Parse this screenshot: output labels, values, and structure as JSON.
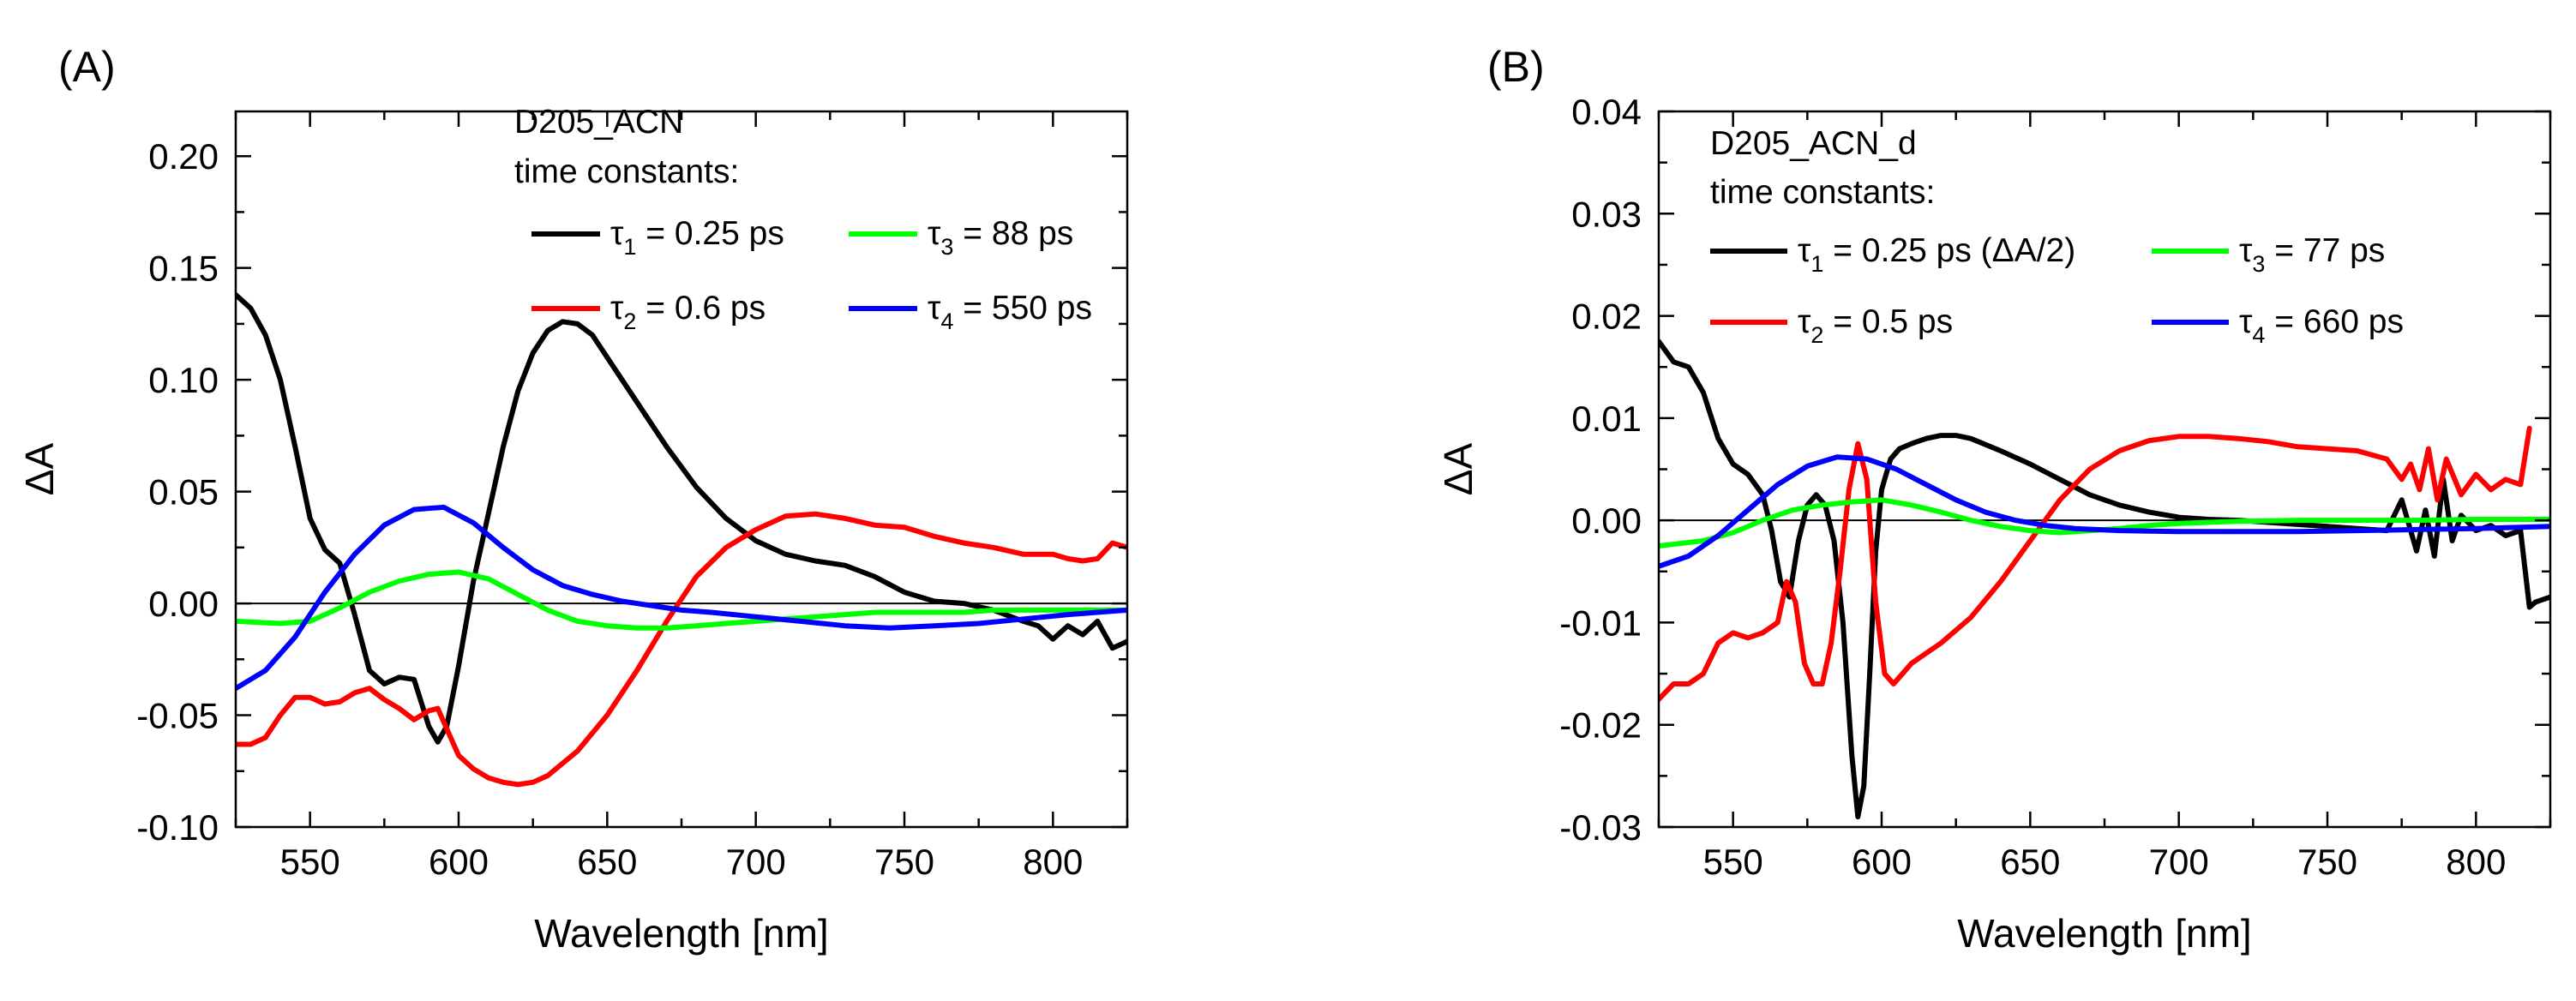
{
  "chart_data": [
    {
      "type": "line",
      "panel_label": "(A)",
      "xlabel": "Wavelength [nm]",
      "ylabel": "ΔA",
      "xlim": [
        525,
        825
      ],
      "ylim": [
        -0.1,
        0.22
      ],
      "xticks": [
        550,
        600,
        650,
        700,
        750,
        800
      ],
      "xtick_labels": [
        "550",
        "600",
        "650",
        "700",
        "750",
        "800"
      ],
      "yticks": [
        -0.1,
        -0.05,
        0.0,
        0.05,
        0.1,
        0.15,
        0.2
      ],
      "ytick_labels": [
        "-0.10",
        "-0.05",
        "0.00",
        "0.05",
        "0.10",
        "0.15",
        "0.20"
      ],
      "legend": {
        "title": "D205_ACN",
        "subtitle": "time constants:",
        "entries": [
          {
            "symbol": "τ",
            "sub": "1",
            "text": " = 0.25 ps"
          },
          {
            "symbol": "τ",
            "sub": "3",
            "text": " = 88 ps"
          },
          {
            "symbol": "τ",
            "sub": "2",
            "text": " = 0.6 ps"
          },
          {
            "symbol": "τ",
            "sub": "4",
            "text": " = 550 ps"
          }
        ]
      },
      "series": [
        {
          "name": "τ1 = 0.25 ps",
          "color": "#000000",
          "x": [
            525,
            530,
            535,
            540,
            545,
            550,
            555,
            560,
            565,
            570,
            575,
            580,
            585,
            590,
            593,
            596,
            600,
            605,
            610,
            615,
            620,
            625,
            630,
            635,
            640,
            645,
            650,
            660,
            670,
            680,
            690,
            700,
            710,
            720,
            730,
            740,
            750,
            760,
            770,
            780,
            790,
            795,
            800,
            805,
            810,
            815,
            820,
            825
          ],
          "y": [
            0.138,
            0.132,
            0.12,
            0.1,
            0.07,
            0.038,
            0.024,
            0.018,
            -0.005,
            -0.03,
            -0.036,
            -0.033,
            -0.034,
            -0.055,
            -0.062,
            -0.055,
            -0.028,
            0.01,
            0.04,
            0.07,
            0.095,
            0.112,
            0.122,
            0.126,
            0.125,
            0.12,
            0.11,
            0.09,
            0.07,
            0.052,
            0.038,
            0.028,
            0.022,
            0.019,
            0.017,
            0.012,
            0.005,
            0.001,
            0.0,
            -0.003,
            -0.008,
            -0.01,
            -0.016,
            -0.01,
            -0.014,
            -0.008,
            -0.02,
            -0.017
          ]
        },
        {
          "name": "τ2 = 0.6 ps",
          "color": "#ff0000",
          "x": [
            525,
            530,
            535,
            540,
            545,
            550,
            555,
            560,
            565,
            570,
            575,
            580,
            585,
            590,
            593,
            596,
            600,
            605,
            610,
            615,
            620,
            625,
            630,
            640,
            650,
            660,
            670,
            680,
            690,
            700,
            710,
            720,
            730,
            740,
            750,
            760,
            770,
            780,
            790,
            800,
            805,
            810,
            815,
            820,
            825
          ],
          "y": [
            -0.063,
            -0.063,
            -0.06,
            -0.05,
            -0.042,
            -0.042,
            -0.045,
            -0.044,
            -0.04,
            -0.038,
            -0.043,
            -0.047,
            -0.052,
            -0.048,
            -0.047,
            -0.056,
            -0.068,
            -0.074,
            -0.078,
            -0.08,
            -0.081,
            -0.08,
            -0.077,
            -0.066,
            -0.05,
            -0.03,
            -0.008,
            0.012,
            0.025,
            0.033,
            0.039,
            0.04,
            0.038,
            0.035,
            0.034,
            0.03,
            0.027,
            0.025,
            0.022,
            0.022,
            0.02,
            0.019,
            0.02,
            0.027,
            0.025
          ]
        },
        {
          "name": "τ3 = 88 ps",
          "color": "#00ff00",
          "x": [
            525,
            540,
            550,
            560,
            570,
            580,
            590,
            600,
            610,
            620,
            630,
            640,
            650,
            660,
            670,
            680,
            690,
            700,
            710,
            720,
            730,
            740,
            750,
            760,
            770,
            780,
            790,
            800,
            810,
            825
          ],
          "y": [
            -0.008,
            -0.009,
            -0.008,
            -0.002,
            0.005,
            0.01,
            0.013,
            0.014,
            0.011,
            0.004,
            -0.003,
            -0.008,
            -0.01,
            -0.011,
            -0.011,
            -0.01,
            -0.009,
            -0.008,
            -0.007,
            -0.006,
            -0.005,
            -0.004,
            -0.004,
            -0.004,
            -0.004,
            -0.003,
            -0.003,
            -0.003,
            -0.003,
            -0.003
          ]
        },
        {
          "name": "τ4 = 550 ps",
          "color": "#0000ff",
          "x": [
            525,
            535,
            545,
            555,
            565,
            575,
            585,
            595,
            605,
            615,
            625,
            635,
            645,
            655,
            665,
            675,
            685,
            700,
            715,
            730,
            745,
            760,
            775,
            790,
            805,
            825
          ],
          "y": [
            -0.038,
            -0.03,
            -0.015,
            0.005,
            0.022,
            0.035,
            0.042,
            0.043,
            0.036,
            0.025,
            0.015,
            0.008,
            0.004,
            0.001,
            -0.001,
            -0.003,
            -0.004,
            -0.006,
            -0.008,
            -0.01,
            -0.011,
            -0.01,
            -0.009,
            -0.007,
            -0.005,
            -0.003
          ]
        }
      ]
    },
    {
      "type": "line",
      "panel_label": "(B)",
      "xlabel": "Wavelength [nm]",
      "ylabel": "ΔA",
      "xlim": [
        525,
        825
      ],
      "ylim": [
        -0.03,
        0.04
      ],
      "xticks": [
        550,
        600,
        650,
        700,
        750,
        800
      ],
      "xtick_labels": [
        "550",
        "600",
        "650",
        "700",
        "750",
        "800"
      ],
      "yticks": [
        -0.03,
        -0.02,
        -0.01,
        0.0,
        0.01,
        0.02,
        0.03,
        0.04
      ],
      "ytick_labels": [
        "-0.03",
        "-0.02",
        "-0.01",
        "0.00",
        "0.01",
        "0.02",
        "0.03",
        "0.04"
      ],
      "legend": {
        "title": "D205_ACN_d",
        "subtitle": "time constants:",
        "entries": [
          {
            "symbol": "τ",
            "sub": "1",
            "text": " = 0.25 ps (ΔA/2)"
          },
          {
            "symbol": "τ",
            "sub": "3",
            "text": " = 77 ps"
          },
          {
            "symbol": "τ",
            "sub": "2",
            "text": " = 0.5 ps"
          },
          {
            "symbol": "τ",
            "sub": "4",
            "text": " = 660 ps"
          }
        ]
      },
      "series": [
        {
          "name": "τ1 = 0.25 ps (ΔA/2)",
          "color": "#000000",
          "x": [
            525,
            530,
            535,
            540,
            545,
            550,
            555,
            560,
            563,
            566,
            569,
            572,
            575,
            578,
            581,
            584,
            587,
            590,
            592,
            594,
            596,
            598,
            600,
            603,
            606,
            610,
            615,
            620,
            625,
            630,
            640,
            650,
            660,
            670,
            680,
            690,
            700,
            710,
            720,
            730,
            740,
            750,
            760,
            770,
            775,
            780,
            783,
            786,
            789,
            792,
            795,
            800,
            805,
            810,
            815,
            818,
            820,
            825
          ],
          "y": [
            0.0175,
            0.0155,
            0.015,
            0.0125,
            0.008,
            0.0055,
            0.0045,
            0.0025,
            -0.001,
            -0.006,
            -0.0075,
            -0.002,
            0.0015,
            0.0025,
            0.0015,
            -0.002,
            -0.01,
            -0.023,
            -0.029,
            -0.026,
            -0.015,
            -0.003,
            0.003,
            0.006,
            0.007,
            0.0075,
            0.008,
            0.0083,
            0.0083,
            0.008,
            0.0068,
            0.0055,
            0.004,
            0.0025,
            0.0015,
            0.0008,
            0.0003,
            0.0001,
            0.0,
            -0.0002,
            -0.0004,
            -0.0006,
            -0.0008,
            -0.001,
            0.002,
            -0.003,
            0.001,
            -0.0035,
            0.004,
            -0.002,
            0.0005,
            -0.001,
            -0.0005,
            -0.0015,
            -0.001,
            -0.0085,
            -0.008,
            -0.0075
          ]
        },
        {
          "name": "τ2 = 0.5 ps",
          "color": "#ff0000",
          "x": [
            525,
            530,
            535,
            540,
            545,
            550,
            555,
            560,
            565,
            568,
            571,
            574,
            577,
            580,
            583,
            586,
            589,
            592,
            595,
            598,
            601,
            604,
            607,
            610,
            615,
            620,
            630,
            640,
            650,
            660,
            670,
            680,
            690,
            700,
            710,
            720,
            730,
            740,
            750,
            760,
            770,
            775,
            778,
            781,
            784,
            787,
            790,
            795,
            800,
            805,
            810,
            815,
            818
          ],
          "y": [
            -0.0175,
            -0.016,
            -0.016,
            -0.015,
            -0.012,
            -0.011,
            -0.0115,
            -0.011,
            -0.01,
            -0.006,
            -0.008,
            -0.014,
            -0.016,
            -0.016,
            -0.012,
            -0.005,
            0.003,
            0.0075,
            0.004,
            -0.008,
            -0.015,
            -0.016,
            -0.015,
            -0.014,
            -0.013,
            -0.012,
            -0.0095,
            -0.006,
            -0.002,
            0.002,
            0.005,
            0.0068,
            0.0078,
            0.0082,
            0.0082,
            0.008,
            0.0077,
            0.0072,
            0.007,
            0.0068,
            0.006,
            0.004,
            0.0055,
            0.003,
            0.007,
            0.002,
            0.006,
            0.0025,
            0.0045,
            0.003,
            0.004,
            0.0035,
            0.009
          ]
        },
        {
          "name": "τ3 = 77 ps",
          "color": "#00ff00",
          "x": [
            525,
            540,
            550,
            560,
            570,
            580,
            590,
            600,
            610,
            620,
            630,
            640,
            650,
            660,
            670,
            680,
            690,
            700,
            720,
            740,
            760,
            780,
            800,
            825
          ],
          "y": [
            -0.0025,
            -0.002,
            -0.0012,
            0.0,
            0.001,
            0.0015,
            0.0018,
            0.002,
            0.0015,
            0.0008,
            0.0,
            -0.0006,
            -0.001,
            -0.0012,
            -0.001,
            -0.0008,
            -0.0005,
            -0.0003,
            -0.0001,
            0.0,
            0.0,
            0.0,
            0.0001,
            0.0001
          ]
        },
        {
          "name": "τ4 = 660 ps",
          "color": "#0000ff",
          "x": [
            525,
            535,
            545,
            555,
            565,
            575,
            585,
            595,
            605,
            615,
            625,
            635,
            645,
            655,
            665,
            680,
            700,
            720,
            740,
            760,
            780,
            800,
            825
          ],
          "y": [
            -0.0045,
            -0.0035,
            -0.0015,
            0.001,
            0.0035,
            0.0053,
            0.0062,
            0.006,
            0.005,
            0.0035,
            0.002,
            0.0008,
            0.0,
            -0.0005,
            -0.0008,
            -0.001,
            -0.0011,
            -0.0011,
            -0.0011,
            -0.001,
            -0.0009,
            -0.0008,
            -0.0006
          ]
        }
      ]
    }
  ]
}
